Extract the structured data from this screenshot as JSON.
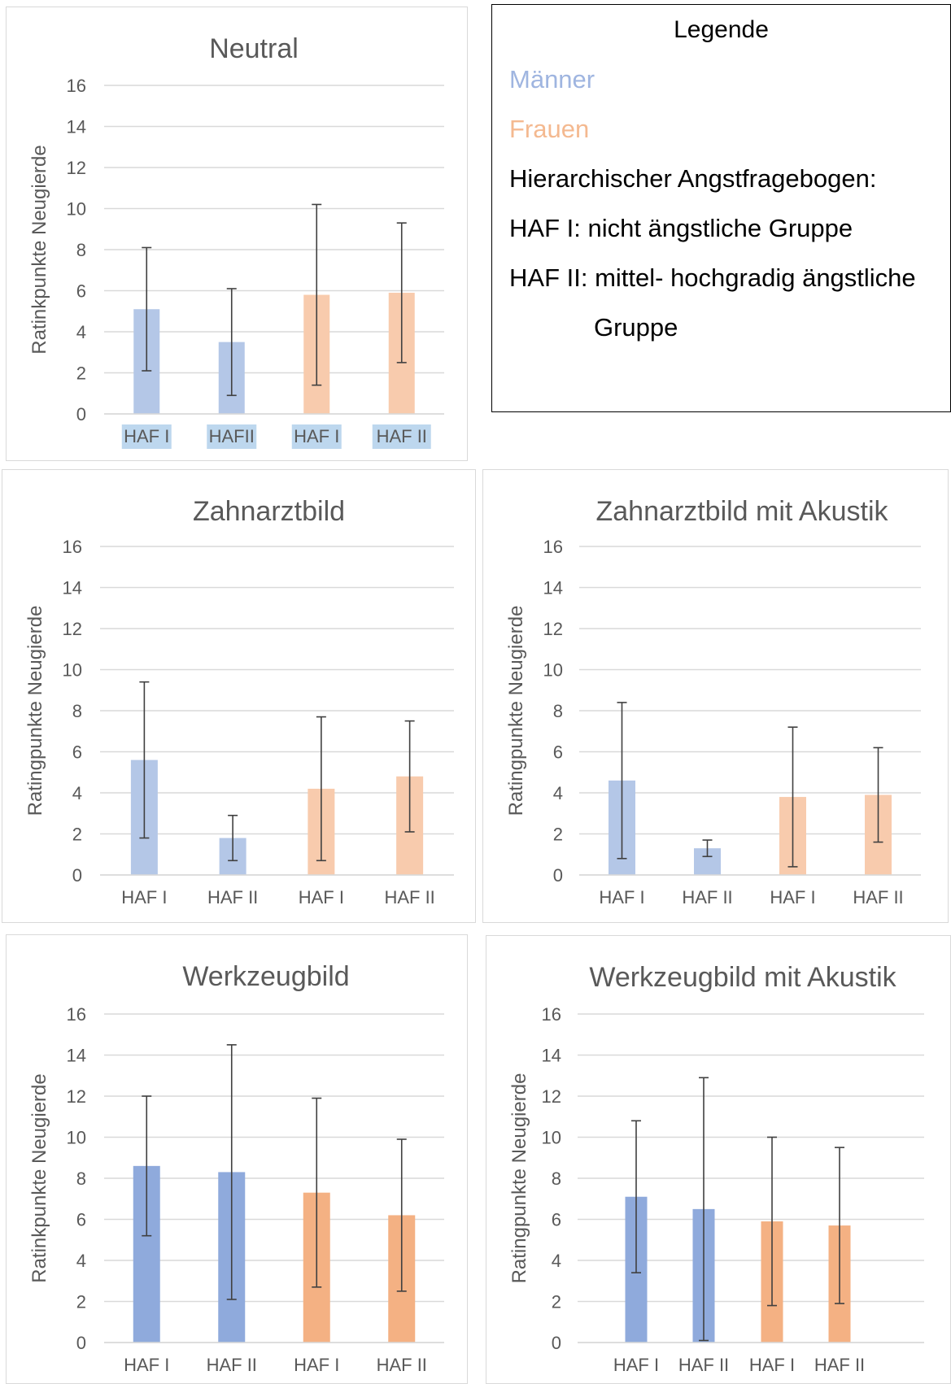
{
  "colors": {
    "men_light": "#b4c7e7",
    "women_light": "#f8cbad",
    "men_dark": "#8faadc",
    "women_dark": "#f4b183",
    "grid": "#d9d9d9",
    "text": "#595959",
    "errorbar": "#404040",
    "label_highlight": "#bdd7ee"
  },
  "legend": {
    "title": "Legende",
    "men": "Männer",
    "women": "Frauen",
    "haf_title": "Hierarchischer Angstfragebogen:",
    "haf1": "HAF I: nicht ängstliche Gruppe",
    "haf2": "HAF II: mittel- hochgradig ängstliche",
    "haf2_cont": "Gruppe"
  },
  "chart_data": [
    {
      "type": "bar",
      "title": "Neutral",
      "ylabel": "Ratinkpunkte Neugierde",
      "ylim": [
        0,
        16
      ],
      "yticks": [
        0,
        2,
        4,
        6,
        8,
        10,
        12,
        14,
        16
      ],
      "categories": [
        "HAF I",
        "HAFII",
        "HAF I",
        "HAF II"
      ],
      "values": [
        5.1,
        3.5,
        5.8,
        5.9
      ],
      "error_low": [
        2.1,
        0.9,
        1.4,
        2.5
      ],
      "error_high": [
        8.1,
        6.1,
        10.2,
        9.3
      ],
      "bar_colors": [
        "#b4c7e7",
        "#b4c7e7",
        "#f8cbad",
        "#f8cbad"
      ],
      "highlight_labels": true
    },
    {
      "type": "bar",
      "title": "Zahnarztbild",
      "ylabel": "Ratingpunkte Neugierde",
      "ylim": [
        0,
        16
      ],
      "yticks": [
        0,
        2,
        4,
        6,
        8,
        10,
        12,
        14,
        16
      ],
      "categories": [
        "HAF I",
        "HAF II",
        "HAF I",
        "HAF II"
      ],
      "values": [
        5.6,
        1.8,
        4.2,
        4.8
      ],
      "error_low": [
        1.8,
        0.7,
        0.7,
        2.1
      ],
      "error_high": [
        9.4,
        2.9,
        7.7,
        7.5
      ],
      "bar_colors": [
        "#b4c7e7",
        "#b4c7e7",
        "#f8cbad",
        "#f8cbad"
      ],
      "highlight_labels": false
    },
    {
      "type": "bar",
      "title": "Zahnarztbild mit Akustik",
      "ylabel": "Ratingpunkte Neugierde",
      "ylim": [
        0,
        16
      ],
      "yticks": [
        0,
        2,
        4,
        6,
        8,
        10,
        12,
        14,
        16
      ],
      "categories": [
        "HAF I",
        "HAF II",
        "HAF I",
        "HAF II"
      ],
      "values": [
        4.6,
        1.3,
        3.8,
        3.9
      ],
      "error_low": [
        0.8,
        0.9,
        0.4,
        1.6
      ],
      "error_high": [
        8.4,
        1.7,
        7.2,
        6.2
      ],
      "bar_colors": [
        "#b4c7e7",
        "#b4c7e7",
        "#f8cbad",
        "#f8cbad"
      ],
      "highlight_labels": false
    },
    {
      "type": "bar",
      "title": "Werkzeugbild",
      "ylabel": "Ratinkpunkte Neugierde",
      "ylim": [
        0,
        16
      ],
      "yticks": [
        0,
        2,
        4,
        6,
        8,
        10,
        12,
        14,
        16
      ],
      "categories": [
        "HAF I",
        "HAF II",
        "HAF I",
        "HAF II"
      ],
      "values": [
        8.6,
        8.3,
        7.3,
        6.2
      ],
      "error_low": [
        5.2,
        2.1,
        2.7,
        2.5
      ],
      "error_high": [
        12.0,
        14.5,
        11.9,
        9.9
      ],
      "bar_colors": [
        "#8faadc",
        "#8faadc",
        "#f4b183",
        "#f4b183"
      ],
      "highlight_labels": false
    },
    {
      "type": "bar",
      "title": "Werkzeugbild mit Akustik",
      "ylabel": "Ratingpunkte Neugierde",
      "ylim": [
        0,
        16
      ],
      "yticks": [
        0,
        2,
        4,
        6,
        8,
        10,
        12,
        14,
        16
      ],
      "categories": [
        "HAF I",
        "HAF II",
        "HAF I",
        "HAF II"
      ],
      "values": [
        7.1,
        6.5,
        5.9,
        5.7
      ],
      "error_low": [
        3.4,
        0.1,
        1.8,
        1.9
      ],
      "error_high": [
        10.8,
        12.9,
        10.0,
        9.5
      ],
      "bar_colors": [
        "#8faadc",
        "#8faadc",
        "#f4b183",
        "#f4b183"
      ],
      "highlight_labels": false
    }
  ]
}
